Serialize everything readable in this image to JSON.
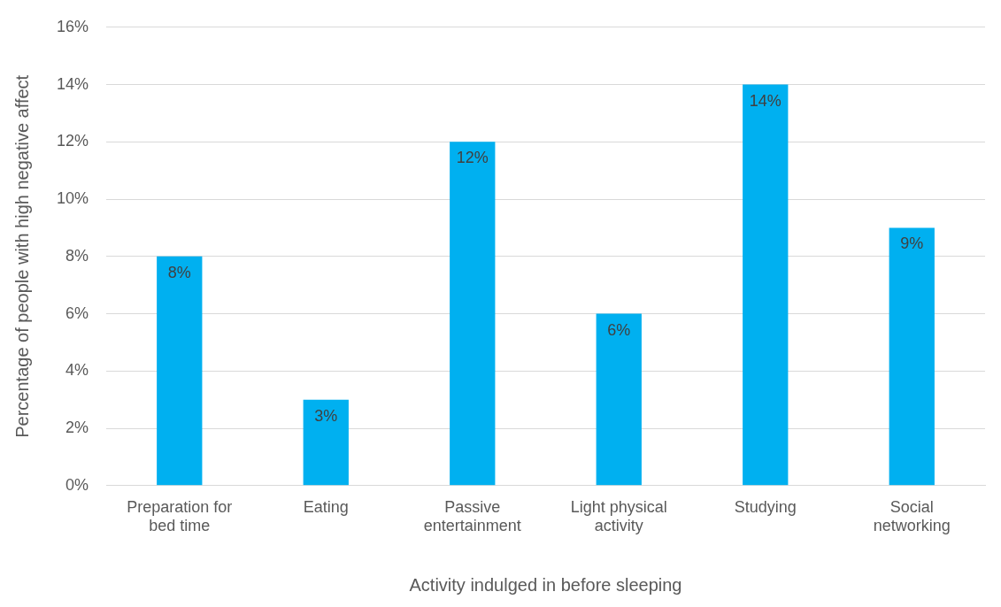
{
  "chart_data": {
    "type": "bar",
    "xlabel": "Activity indulged in before sleeping",
    "ylabel": "Percentage of people with high negative affect",
    "categories": [
      "Preparation for bed time",
      "Eating",
      "Passive entertainment",
      "Light physical activity",
      "Studying",
      "Social networking"
    ],
    "values": [
      8,
      3,
      12,
      6,
      14,
      9
    ],
    "value_labels": [
      "8%",
      "3%",
      "12%",
      "6%",
      "14%",
      "9%"
    ],
    "color": "#00b0f0",
    "ylim": [
      0,
      16
    ],
    "yticks": [
      {
        "value": 0,
        "label": "0%"
      },
      {
        "value": 2,
        "label": "2%"
      },
      {
        "value": 4,
        "label": "4%"
      },
      {
        "value": 6,
        "label": "6%"
      },
      {
        "value": 8,
        "label": "8%"
      },
      {
        "value": 10,
        "label": "10%"
      },
      {
        "value": 12,
        "label": "12%"
      },
      {
        "value": 14,
        "label": "14%"
      },
      {
        "value": 16,
        "label": "16%"
      }
    ],
    "grid": "y",
    "legend": false
  }
}
